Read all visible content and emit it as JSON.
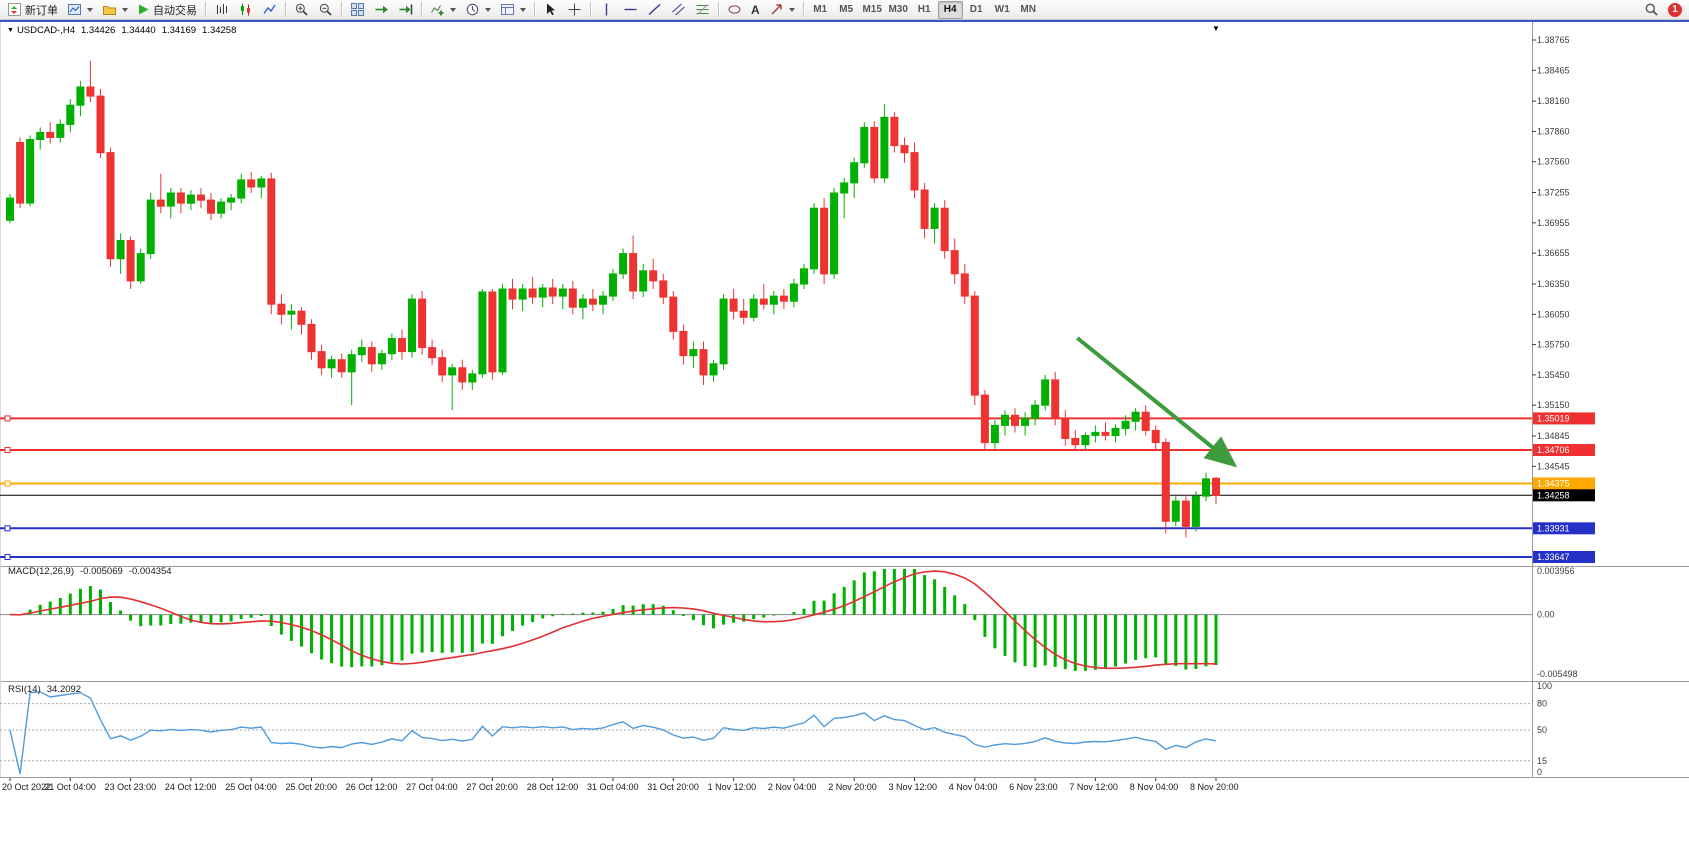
{
  "toolbar": {
    "new_order": "新订单",
    "autotrading": "自动交易",
    "timeframes": [
      "M1",
      "M5",
      "M15",
      "M30",
      "H1",
      "H4",
      "D1",
      "W1",
      "MN"
    ],
    "active_timeframe": "H4",
    "notification_count": "1"
  },
  "icons": {
    "header_marker": "▼",
    "shift_marker": "▼",
    "text_tool_glyph": "A"
  },
  "chart_header": {
    "symbol_period": "USDCAD-,H4",
    "open": "1.34426",
    "high": "1.34440",
    "low": "1.34169",
    "close": "1.34258"
  },
  "chart_data": {
    "type": "candlestick",
    "title": "USDCAD- H4",
    "symbol": "USDCAD-",
    "timeframe": "H4",
    "ylim": [
      1.3357,
      1.3896
    ],
    "grid": false,
    "colors": {
      "up": "#00b000",
      "down": "#ee3333",
      "background": "#ffffff"
    },
    "price_axis_labels": [
      "1.38765",
      "1.38465",
      "1.38160",
      "1.37860",
      "1.37560",
      "1.37255",
      "1.36955",
      "1.36655",
      "1.36350",
      "1.36050",
      "1.35750",
      "1.35450",
      "1.35150",
      "1.34845",
      "1.34545"
    ],
    "x_tick_step": 6,
    "x_labels": [
      "20 Oct 2022",
      "21 Oct 04:00",
      "23 Oct 23:00",
      "24 Oct 12:00",
      "25 Oct 04:00",
      "25 Oct 20:00",
      "26 Oct 12:00",
      "27 Oct 04:00",
      "27 Oct 20:00",
      "28 Oct 12:00",
      "31 Oct 04:00",
      "31 Oct 20:00",
      "1 Nov 12:00",
      "2 Nov 04:00",
      "2 Nov 20:00",
      "3 Nov 12:00",
      "4 Nov 04:00",
      "6 Nov 23:00",
      "7 Nov 12:00",
      "8 Nov 04:00",
      "8 Nov 20:00"
    ],
    "candles": [
      [
        1.3698,
        1.3724,
        1.3695,
        1.372
      ],
      [
        1.3775,
        1.378,
        1.371,
        1.3715
      ],
      [
        1.3715,
        1.3782,
        1.3712,
        1.3778
      ],
      [
        1.3778,
        1.379,
        1.3768,
        1.3785
      ],
      [
        1.3785,
        1.3795,
        1.3774,
        1.378
      ],
      [
        1.378,
        1.3798,
        1.3775,
        1.3793
      ],
      [
        1.3793,
        1.3818,
        1.3785,
        1.3812
      ],
      [
        1.3812,
        1.3836,
        1.3801,
        1.383
      ],
      [
        1.383,
        1.3856,
        1.3815,
        1.3821
      ],
      [
        1.3821,
        1.3828,
        1.376,
        1.3765
      ],
      [
        1.3765,
        1.377,
        1.3652,
        1.366
      ],
      [
        1.366,
        1.3685,
        1.3645,
        1.3678
      ],
      [
        1.3678,
        1.3682,
        1.363,
        1.3638
      ],
      [
        1.3638,
        1.367,
        1.3635,
        1.3665
      ],
      [
        1.3665,
        1.3725,
        1.366,
        1.3718
      ],
      [
        1.3718,
        1.3744,
        1.3705,
        1.3712
      ],
      [
        1.3712,
        1.373,
        1.37,
        1.3725
      ],
      [
        1.3725,
        1.373,
        1.3705,
        1.3715
      ],
      [
        1.3715,
        1.3728,
        1.3708,
        1.3723
      ],
      [
        1.3723,
        1.373,
        1.371,
        1.3718
      ],
      [
        1.3718,
        1.3725,
        1.3698,
        1.3705
      ],
      [
        1.3705,
        1.372,
        1.37,
        1.3716
      ],
      [
        1.3716,
        1.3724,
        1.3708,
        1.372
      ],
      [
        1.372,
        1.3744,
        1.3715,
        1.3738
      ],
      [
        1.3738,
        1.3746,
        1.3725,
        1.3731
      ],
      [
        1.3731,
        1.3742,
        1.372,
        1.3739
      ],
      [
        1.3739,
        1.3745,
        1.3605,
        1.3615
      ],
      [
        1.3615,
        1.3625,
        1.3595,
        1.3605
      ],
      [
        1.3605,
        1.3615,
        1.359,
        1.3608
      ],
      [
        1.3608,
        1.3612,
        1.3585,
        1.3595
      ],
      [
        1.3595,
        1.36,
        1.356,
        1.3568
      ],
      [
        1.3568,
        1.3575,
        1.3545,
        1.3552
      ],
      [
        1.3552,
        1.3564,
        1.3542,
        1.356
      ],
      [
        1.356,
        1.3566,
        1.3542,
        1.3548
      ],
      [
        1.3548,
        1.357,
        1.3515,
        1.3565
      ],
      [
        1.3565,
        1.358,
        1.3558,
        1.3572
      ],
      [
        1.3572,
        1.3578,
        1.3548,
        1.3556
      ],
      [
        1.3556,
        1.357,
        1.355,
        1.3566
      ],
      [
        1.3566,
        1.3586,
        1.356,
        1.3581
      ],
      [
        1.3581,
        1.359,
        1.356,
        1.3568
      ],
      [
        1.3568,
        1.3625,
        1.3562,
        1.362
      ],
      [
        1.362,
        1.3628,
        1.3565,
        1.3572
      ],
      [
        1.3572,
        1.358,
        1.3555,
        1.3562
      ],
      [
        1.3562,
        1.357,
        1.3538,
        1.3545
      ],
      [
        1.3545,
        1.3556,
        1.351,
        1.3552
      ],
      [
        1.3552,
        1.356,
        1.353,
        1.3538
      ],
      [
        1.3538,
        1.355,
        1.353,
        1.3546
      ],
      [
        1.3546,
        1.363,
        1.3542,
        1.3627
      ],
      [
        1.3627,
        1.363,
        1.354,
        1.3548
      ],
      [
        1.3548,
        1.3635,
        1.3545,
        1.363
      ],
      [
        1.363,
        1.364,
        1.361,
        1.362
      ],
      [
        1.362,
        1.3635,
        1.3608,
        1.363
      ],
      [
        1.363,
        1.3642,
        1.3615,
        1.3622
      ],
      [
        1.3622,
        1.3635,
        1.3612,
        1.3631
      ],
      [
        1.3631,
        1.364,
        1.3615,
        1.3623
      ],
      [
        1.3623,
        1.3635,
        1.361,
        1.363
      ],
      [
        1.363,
        1.3638,
        1.3605,
        1.3612
      ],
      [
        1.3612,
        1.3625,
        1.36,
        1.362
      ],
      [
        1.362,
        1.363,
        1.3608,
        1.3615
      ],
      [
        1.3615,
        1.3628,
        1.3605,
        1.3623
      ],
      [
        1.3623,
        1.365,
        1.3618,
        1.3645
      ],
      [
        1.3645,
        1.367,
        1.364,
        1.3665
      ],
      [
        1.3665,
        1.3683,
        1.362,
        1.3628
      ],
      [
        1.3628,
        1.3655,
        1.3622,
        1.3648
      ],
      [
        1.3648,
        1.366,
        1.363,
        1.3638
      ],
      [
        1.3638,
        1.3645,
        1.3615,
        1.3622
      ],
      [
        1.3622,
        1.3628,
        1.358,
        1.3588
      ],
      [
        1.3588,
        1.3595,
        1.3555,
        1.3564
      ],
      [
        1.3564,
        1.3578,
        1.3552,
        1.357
      ],
      [
        1.357,
        1.3578,
        1.3535,
        1.3545
      ],
      [
        1.3545,
        1.356,
        1.3538,
        1.3556
      ],
      [
        1.3556,
        1.3625,
        1.355,
        1.362
      ],
      [
        1.362,
        1.363,
        1.36,
        1.3608
      ],
      [
        1.3608,
        1.362,
        1.3595,
        1.3602
      ],
      [
        1.3602,
        1.3625,
        1.3598,
        1.362
      ],
      [
        1.362,
        1.3635,
        1.361,
        1.3615
      ],
      [
        1.3615,
        1.3628,
        1.3605,
        1.3623
      ],
      [
        1.3623,
        1.363,
        1.361,
        1.3618
      ],
      [
        1.3618,
        1.364,
        1.3612,
        1.3635
      ],
      [
        1.3635,
        1.3655,
        1.363,
        1.365
      ],
      [
        1.365,
        1.3715,
        1.3645,
        1.371
      ],
      [
        1.371,
        1.372,
        1.3635,
        1.3645
      ],
      [
        1.3645,
        1.373,
        1.364,
        1.3725
      ],
      [
        1.3725,
        1.374,
        1.37,
        1.3735
      ],
      [
        1.3735,
        1.376,
        1.372,
        1.3755
      ],
      [
        1.3755,
        1.3795,
        1.375,
        1.379
      ],
      [
        1.379,
        1.3796,
        1.3735,
        1.374
      ],
      [
        1.374,
        1.3813,
        1.3735,
        1.38
      ],
      [
        1.38,
        1.3805,
        1.3765,
        1.3772
      ],
      [
        1.3772,
        1.378,
        1.3755,
        1.3765
      ],
      [
        1.3765,
        1.3775,
        1.372,
        1.3728
      ],
      [
        1.3728,
        1.3735,
        1.368,
        1.369
      ],
      [
        1.369,
        1.3715,
        1.3675,
        1.371
      ],
      [
        1.371,
        1.3718,
        1.366,
        1.3668
      ],
      [
        1.3668,
        1.368,
        1.3635,
        1.3645
      ],
      [
        1.3645,
        1.3655,
        1.3615,
        1.3623
      ],
      [
        1.3623,
        1.3628,
        1.3515,
        1.3525
      ],
      [
        1.3525,
        1.353,
        1.347,
        1.3478
      ],
      [
        1.3478,
        1.35,
        1.3472,
        1.3495
      ],
      [
        1.3495,
        1.351,
        1.3485,
        1.3505
      ],
      [
        1.3505,
        1.3512,
        1.3488,
        1.3495
      ],
      [
        1.3495,
        1.3508,
        1.3485,
        1.3502
      ],
      [
        1.3502,
        1.352,
        1.3495,
        1.3515
      ],
      [
        1.3515,
        1.3545,
        1.351,
        1.354
      ],
      [
        1.354,
        1.3548,
        1.3495,
        1.3502
      ],
      [
        1.3502,
        1.351,
        1.3475,
        1.3482
      ],
      [
        1.3482,
        1.349,
        1.347,
        1.3476
      ],
      [
        1.3476,
        1.3488,
        1.3471,
        1.3485
      ],
      [
        1.3485,
        1.3495,
        1.3478,
        1.3488
      ],
      [
        1.3488,
        1.3498,
        1.348,
        1.3485
      ],
      [
        1.3485,
        1.3496,
        1.3478,
        1.3492
      ],
      [
        1.3492,
        1.3505,
        1.3485,
        1.3499
      ],
      [
        1.3499,
        1.3512,
        1.349,
        1.3508
      ],
      [
        1.3508,
        1.3515,
        1.3485,
        1.349
      ],
      [
        1.349,
        1.3495,
        1.347,
        1.3478
      ],
      [
        1.3478,
        1.3482,
        1.3388,
        1.34
      ],
      [
        1.34,
        1.3425,
        1.3395,
        1.342
      ],
      [
        1.342,
        1.3426,
        1.3384,
        1.3395
      ],
      [
        1.3395,
        1.343,
        1.339,
        1.3425
      ],
      [
        1.3425,
        1.3448,
        1.342,
        1.3442
      ],
      [
        1.34426,
        1.3444,
        1.34169,
        1.34258
      ]
    ],
    "hlines": [
      {
        "price": 1.35019,
        "label": "1.35019",
        "color": "#f03030",
        "width": 2
      },
      {
        "price": 1.34706,
        "label": "1.34706",
        "color": "#f03030",
        "width": 2
      },
      {
        "price": 1.34375,
        "label": "1.34375",
        "color": "#ffa800",
        "width": 2
      },
      {
        "price": 1.33931,
        "label": "1.33931",
        "color": "#2430c8",
        "width": 2
      },
      {
        "price": 1.33647,
        "label": "1.33647",
        "color": "#2430c8",
        "width": 2
      }
    ],
    "current_price": {
      "price": 1.34258,
      "label": "1.34258",
      "line_color": "#000000",
      "badge_color": "#000000"
    },
    "arrow": {
      "from": [
        106.2,
        1.35815
      ],
      "to": [
        121.8,
        1.3456
      ],
      "color": "#3e9b3e"
    },
    "indicators": {
      "macd": {
        "name": "MACD(12,26,9)",
        "value_main": "-0.005069",
        "value_signal": "-0.004354",
        "axis_max_label": "0.003956",
        "axis_zero_label": "0.00",
        "axis_min_label": "-0.005498",
        "bar_color": "#00b000",
        "signal_color": "#e03030"
      },
      "rsi": {
        "name": "RSI(14)",
        "value": "34.2092",
        "line_color": "#4f9bdb",
        "axis_labels": [
          "100",
          "80",
          "50",
          "15",
          "0"
        ],
        "levels": [
          80,
          50,
          15
        ]
      }
    }
  }
}
